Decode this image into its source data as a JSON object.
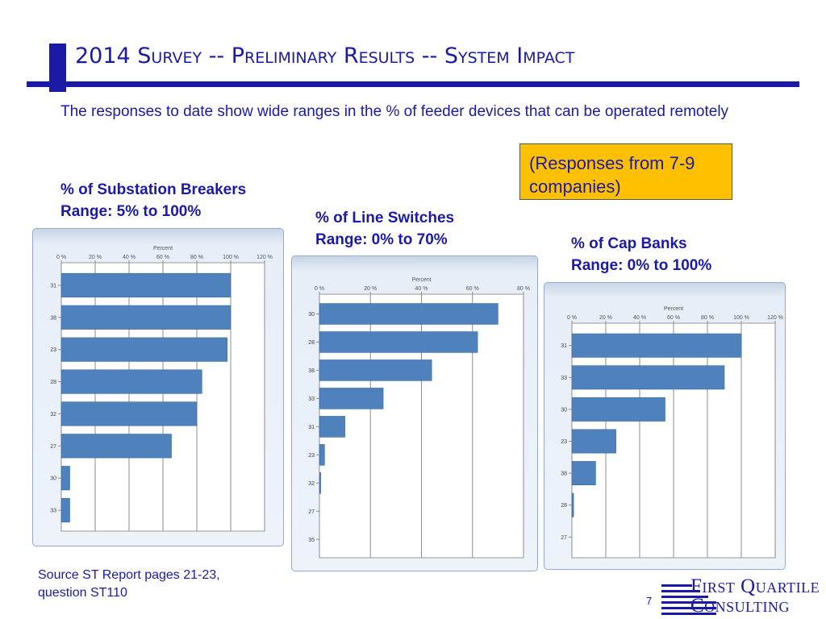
{
  "slide": {
    "title": "2014 Survey --  Preliminary Results -- System Impact",
    "intro": "The responses to date show wide ranges in the %  of feeder devices that can be operated remotely",
    "callout": "(Responses from 7-9 companies)",
    "source_line1": "Source ST Report pages 21-23,",
    "source_line2": "question ST110",
    "page_number": "7"
  },
  "logo": {
    "line1": "First Quartile",
    "line2": "Consulting"
  },
  "colors": {
    "title": "#1a1aa6",
    "bar": "#4f81bd",
    "bar_edge": "#3a6aa3",
    "callout": "#ffc000"
  },
  "chart_data": [
    {
      "type": "bar",
      "orientation": "horizontal",
      "heading": "% of Substation Breakers",
      "subheading": "Range: 5% to 100%",
      "xlabel": "Percent",
      "xlim": [
        0,
        120
      ],
      "ticks": [
        0,
        20,
        40,
        60,
        80,
        100,
        120
      ],
      "tick_labels": [
        "0 %",
        "20 %",
        "40 %",
        "60 %",
        "80 %",
        "100 %",
        "120 %"
      ],
      "categories": [
        "31",
        "38",
        "23",
        "28",
        "32",
        "27",
        "30",
        "33"
      ],
      "values": [
        100,
        100,
        98,
        83,
        80,
        65,
        5,
        5
      ],
      "grid": true
    },
    {
      "type": "bar",
      "orientation": "horizontal",
      "heading": "% of Line Switches",
      "subheading": "Range: 0% to 70%",
      "xlabel": "Percent",
      "xlim": [
        0,
        80
      ],
      "ticks": [
        0,
        20,
        40,
        60,
        80
      ],
      "tick_labels": [
        "0 %",
        "20 %",
        "40 %",
        "60 %",
        "80 %"
      ],
      "categories": [
        "30",
        "28",
        "38",
        "33",
        "31",
        "23",
        "32",
        "27",
        "35"
      ],
      "values": [
        70,
        62,
        44,
        25,
        10,
        2,
        0.5,
        0,
        0
      ],
      "grid": true
    },
    {
      "type": "bar",
      "orientation": "horizontal",
      "heading": "% of Cap Banks",
      "subheading": "Range: 0% to 100%",
      "xlabel": "Percent",
      "xlim": [
        0,
        120
      ],
      "ticks": [
        0,
        20,
        40,
        60,
        80,
        100,
        120
      ],
      "tick_labels": [
        "0 %",
        "20 %",
        "40 %",
        "60 %",
        "80 %",
        "100 %",
        "120 %"
      ],
      "categories": [
        "31",
        "33",
        "30",
        "23",
        "38",
        "28",
        "27"
      ],
      "values": [
        100,
        90,
        55,
        26,
        14,
        1,
        0
      ],
      "grid": true
    }
  ]
}
